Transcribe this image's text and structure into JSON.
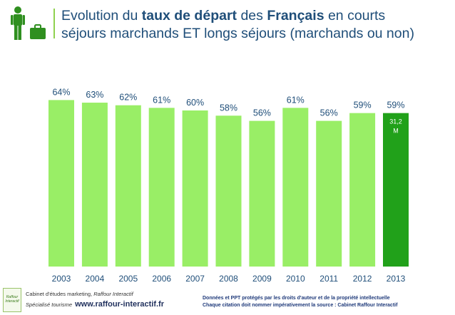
{
  "title": {
    "part1": "Evolution du ",
    "bold1": "taux de départ",
    "part2": " des ",
    "bold2": "Français",
    "part3": " en courts",
    "line2": "séjours marchands ET longs séjours (marchands ou non)"
  },
  "icons": {
    "person": "person-with-luggage-icon",
    "logo": "raffour-interactif-logo"
  },
  "colors": {
    "bar_light": "#99ee66",
    "bar_highlight": "#21a11a",
    "title": "#1f4e79",
    "accent": "#8fd14f"
  },
  "chart_data": {
    "type": "bar",
    "categories": [
      "2003",
      "2004",
      "2005",
      "2006",
      "2007",
      "2008",
      "2009",
      "2010",
      "2011",
      "2012",
      "2013"
    ],
    "values": [
      64,
      63,
      62,
      61,
      60,
      58,
      56,
      61,
      56,
      59,
      59
    ],
    "value_labels": [
      "64%",
      "63%",
      "62%",
      "61%",
      "60%",
      "58%",
      "56%",
      "61%",
      "56%",
      "59%",
      "59%"
    ],
    "highlight_index": 10,
    "highlight_note": "31,2 M",
    "title": "",
    "xlabel": "",
    "ylabel": "",
    "ylim": [
      0,
      70
    ],
    "grid": false,
    "legend": "none"
  },
  "footer": {
    "cabinet_line1_prefix": "Cabinet d'études marketing, ",
    "cabinet_line1_italic": "Raffour Interactif",
    "cabinet_line2_italic": "Spécialisé tourisme",
    "url": "www.raffour-interactif.fr",
    "rights_line1": "Données et PPT protégés par les droits d'auteur et de la propriété intellectuelle",
    "rights_line2": "Chaque citation doit nommer impérativement la source :  Cabinet Raffour Interactif",
    "logo_text": "Raffour Interactif"
  }
}
